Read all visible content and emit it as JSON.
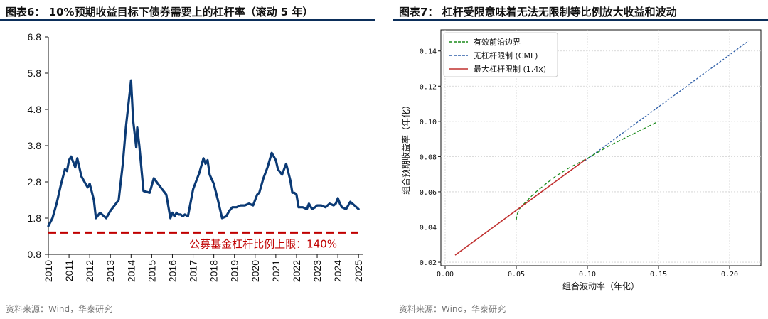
{
  "left": {
    "title": "图表6：  10%预期收益目标下债券需要上的杠杆率（滚动 5 年）",
    "source": "资料来源：Wind，华泰研究",
    "chart_data": {
      "type": "line",
      "ylim": [
        0.8,
        6.8
      ],
      "yticks": [
        "6.8",
        "5.8",
        "4.8",
        "3.8",
        "2.8",
        "1.8",
        "0.8"
      ],
      "xlim": [
        2010,
        2025.2
      ],
      "xticks": [
        "2010",
        "2011",
        "2012",
        "2013",
        "2014",
        "2015",
        "2016",
        "2017",
        "2018",
        "2019",
        "2020",
        "2021",
        "2022",
        "2023",
        "2024",
        "2025"
      ],
      "series": [
        {
          "color": "#0b3a75",
          "x": [
            2010.0,
            2010.2,
            2010.4,
            2010.6,
            2010.8,
            2010.9,
            2011.0,
            2011.1,
            2011.2,
            2011.3,
            2011.4,
            2011.6,
            2011.8,
            2011.9,
            2012.0,
            2012.2,
            2012.3,
            2012.5,
            2012.8,
            2013.0,
            2013.2,
            2013.4,
            2013.6,
            2013.75,
            2014.0,
            2014.1,
            2014.25,
            2014.3,
            2014.4,
            2014.6,
            2014.9,
            2015.1,
            2015.3,
            2015.5,
            2015.7,
            2015.9,
            2016.0,
            2016.1,
            2016.2,
            2016.3,
            2016.4,
            2016.5,
            2016.6,
            2016.75,
            2017.0,
            2017.3,
            2017.5,
            2017.6,
            2017.7,
            2017.8,
            2018.0,
            2018.2,
            2018.4,
            2018.6,
            2018.75,
            2018.9,
            2019.1,
            2019.3,
            2019.5,
            2019.7,
            2019.9,
            2020.1,
            2020.2,
            2020.4,
            2020.6,
            2020.8,
            2020.9,
            2021.0,
            2021.1,
            2021.3,
            2021.5,
            2021.7,
            2021.8,
            2021.9,
            2022.0,
            2022.1,
            2022.3,
            2022.5,
            2022.6,
            2022.75,
            2022.9,
            2023.0,
            2023.2,
            2023.4,
            2023.6,
            2023.8,
            2023.9,
            2024.0,
            2024.1,
            2024.2,
            2024.4,
            2024.6,
            2024.8,
            2025.0
          ],
          "y": [
            1.58,
            1.8,
            2.2,
            2.7,
            3.15,
            3.1,
            3.4,
            3.5,
            3.35,
            3.2,
            3.45,
            2.95,
            2.75,
            2.65,
            2.75,
            2.3,
            1.8,
            1.95,
            1.8,
            2.0,
            2.15,
            2.3,
            3.3,
            4.3,
            5.6,
            4.5,
            3.75,
            4.3,
            3.8,
            2.55,
            2.5,
            2.9,
            2.75,
            2.6,
            2.45,
            1.8,
            1.95,
            1.85,
            1.95,
            1.9,
            1.9,
            1.85,
            1.9,
            1.85,
            2.6,
            3.05,
            3.45,
            3.3,
            3.4,
            3.0,
            2.75,
            2.3,
            1.8,
            1.85,
            2.0,
            2.1,
            2.1,
            2.15,
            2.15,
            2.2,
            2.15,
            2.45,
            2.5,
            2.9,
            3.2,
            3.6,
            3.5,
            3.4,
            3.15,
            3.0,
            3.3,
            2.85,
            2.5,
            2.5,
            2.45,
            2.1,
            2.1,
            2.05,
            2.2,
            2.05,
            2.1,
            2.15,
            2.15,
            2.1,
            2.2,
            2.15,
            2.2,
            2.35,
            2.2,
            2.1,
            2.05,
            2.25,
            2.15,
            2.05
          ]
        }
      ],
      "hline": {
        "y": 1.4,
        "color": "#c00000",
        "label": "公募基金杠杆比例上限：140%"
      }
    }
  },
  "right": {
    "title": "图表7：  杠杆受限意味着无法无限制等比例放大收益和波动",
    "source": "资料来源：Wind，华泰研究",
    "chart_data": {
      "type": "line",
      "xlabel": "组合波动率（年化）",
      "ylabel": "组合预期收益率（年化）",
      "xlim": [
        -0.003,
        0.222
      ],
      "ylim": [
        0.018,
        0.152
      ],
      "xticks": [
        "0.00",
        "0.05",
        "0.10",
        "0.15",
        "0.20"
      ],
      "yticks": [
        "0.02",
        "0.04",
        "0.06",
        "0.08",
        "0.10",
        "0.12",
        "0.14"
      ],
      "grid": true,
      "legend": "top-left",
      "series": [
        {
          "name": "有效前沿边界",
          "color": "#1a8a1a",
          "dash": "dashed",
          "x": [
            0.05,
            0.0505,
            0.052,
            0.054,
            0.057,
            0.06,
            0.064,
            0.07,
            0.078,
            0.088,
            0.1,
            0.115,
            0.13,
            0.15
          ],
          "y": [
            0.044,
            0.047,
            0.05,
            0.052,
            0.0545,
            0.057,
            0.06,
            0.064,
            0.069,
            0.074,
            0.079,
            0.086,
            0.092,
            0.1
          ]
        },
        {
          "name": "无杠杆限制 (CML)",
          "color": "#2f5fa8",
          "dash": "dashed",
          "x": [
            0.098,
            0.213
          ],
          "y": [
            0.0775,
            0.1455
          ]
        },
        {
          "name": "最大杠杆限制 (1.4x)",
          "color": "#c0302f",
          "dash": "solid",
          "x": [
            0.007,
            0.099
          ],
          "y": [
            0.024,
            0.0785
          ]
        }
      ]
    }
  }
}
